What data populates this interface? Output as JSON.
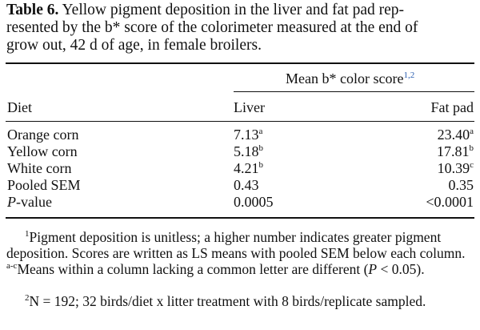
{
  "caption": {
    "label": "Table 6.",
    "line1": "Yellow pigment deposition in the liver and fat pad rep-",
    "line2": "resented by the b* score of the colorimeter measured at the end of",
    "line3": "grow out, 42 d of age, in female broilers."
  },
  "table": {
    "group_header": "Mean b* color score",
    "group_header_sup": "1,2",
    "columns": [
      "Diet",
      "Liver",
      "Fat pad"
    ],
    "rows": [
      {
        "diet": "Orange corn",
        "liver": "7.13",
        "liver_sup": "a",
        "fat": "23.40",
        "fat_sup": "a"
      },
      {
        "diet": "Yellow corn",
        "liver": "5.18",
        "liver_sup": "b",
        "fat": "17.81",
        "fat_sup": "b"
      },
      {
        "diet": "White corn",
        "liver": "4.21",
        "liver_sup": "b",
        "fat": "10.39",
        "fat_sup": "c"
      },
      {
        "diet": "Pooled SEM",
        "liver": "0.43",
        "liver_sup": "",
        "fat": "0.35",
        "fat_sup": ""
      },
      {
        "diet_italic": "P",
        "diet": "-value",
        "liver": "0.0005",
        "liver_sup": "",
        "fat": "<0.0001",
        "fat_sup": ""
      }
    ]
  },
  "footnotes": {
    "fn1_mark": "1",
    "fn1_text_a": "Pigment deposition is unitless; a higher number indicates greater pigment deposition. Scores are written as LS means with pooled SEM below each column.",
    "fn1_mark_b": "a-c",
    "fn1_text_b": "Means within a column lacking a common letter are different (",
    "fn1_p": "P",
    "fn1_text_c": " < 0.05).",
    "fn2_mark": "2",
    "fn2_text": "N = 192; 32 birds/diet x litter treatment with 8 birds/replicate sampled."
  }
}
